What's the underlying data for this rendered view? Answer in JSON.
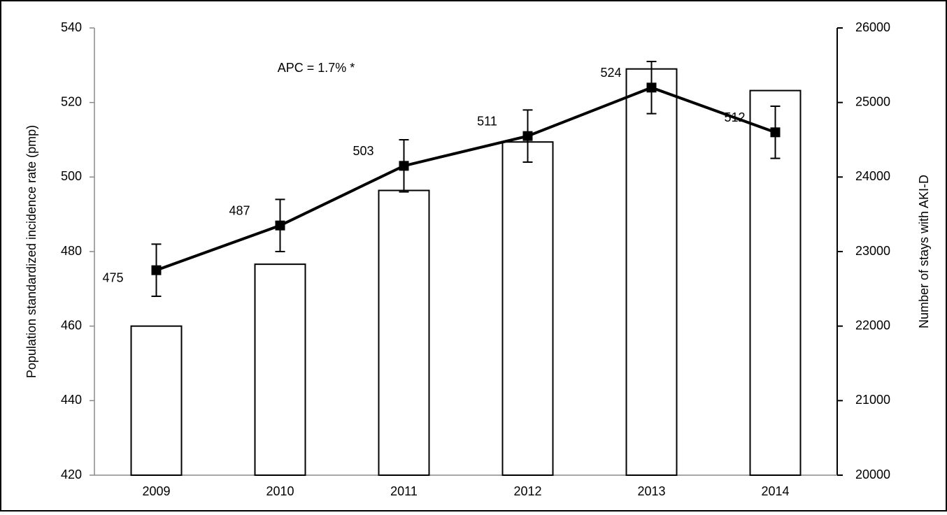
{
  "chart_data": {
    "type": "combo",
    "categories": [
      "2009",
      "2010",
      "2011",
      "2012",
      "2013",
      "2014"
    ],
    "series": [
      {
        "type": "bar",
        "axis": "y2",
        "color": "#ffffff",
        "values": [
          22000,
          22830,
          23820,
          24470,
          25450,
          25160
        ]
      },
      {
        "type": "line",
        "axis": "y",
        "color": "#000000",
        "values": [
          475,
          487,
          503,
          511,
          524,
          512
        ],
        "errors": [
          7,
          7,
          7,
          7,
          7,
          7
        ]
      }
    ],
    "ylabel": "Population standardized incidence rate (pmp)",
    "y2label": "Number of stays with AKI-D",
    "ylim": [
      420,
      540
    ],
    "yticks": [
      420,
      440,
      460,
      480,
      500,
      520,
      540
    ],
    "y2lim": [
      20000,
      26000
    ],
    "y2ticks": [
      20000,
      21000,
      22000,
      23000,
      24000,
      25000,
      26000
    ],
    "annotation": "APC = 1.7% *",
    "grid": false
  }
}
